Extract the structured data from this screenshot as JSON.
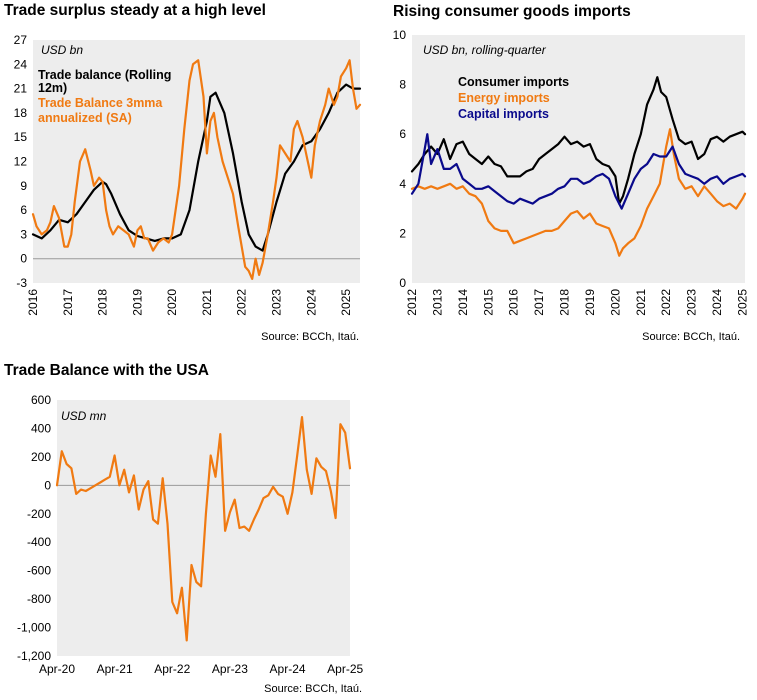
{
  "titles": {
    "trade_surplus": "Trade surplus steady at a high level",
    "consumer_imports": "Rising consumer goods imports",
    "usa": "Trade Balance with the USA"
  },
  "colors": {
    "black": "#000000",
    "orange": "#F07A12",
    "navy": "#0A0A8C",
    "plot_bg": "#EDEDED"
  },
  "chart_data": [
    {
      "type": "line",
      "title": "Trade surplus steady at a high level",
      "unit_label": "USD bn",
      "source": "Source: BCCh, Itaú.",
      "xlim": [
        2016,
        2025.4
      ],
      "x_ticks": [
        2016,
        2017,
        2018,
        2019,
        2020,
        2021,
        2022,
        2023,
        2024,
        2025
      ],
      "x_tick_labels": [
        "2016",
        "2017",
        "2018",
        "2019",
        "2020",
        "2021",
        "2022",
        "2023",
        "2024",
        "2025"
      ],
      "ylim": [
        -3,
        27
      ],
      "y_ticks": [
        -3,
        0,
        3,
        6,
        9,
        12,
        15,
        18,
        21,
        24,
        27
      ],
      "y_tick_labels": [
        "-3",
        "0",
        "3",
        "6",
        "9",
        "12",
        "15",
        "18",
        "21",
        "24",
        "27"
      ],
      "legend_placement": "top-left",
      "series": [
        {
          "name": "Trade balance (Rolling 12m)",
          "legend_label_lines": [
            "Trade balance (Rolling",
            "12m)"
          ],
          "color": "#000000",
          "x": [
            2016.0,
            2016.25,
            2016.5,
            2016.75,
            2017.0,
            2017.25,
            2017.5,
            2017.75,
            2018.0,
            2018.1,
            2018.25,
            2018.5,
            2018.75,
            2019.0,
            2019.25,
            2019.5,
            2019.75,
            2020.0,
            2020.25,
            2020.5,
            2020.75,
            2021.0,
            2021.1,
            2021.25,
            2021.5,
            2021.75,
            2022.0,
            2022.2,
            2022.4,
            2022.6,
            2022.75,
            2023.0,
            2023.25,
            2023.5,
            2023.75,
            2024.0,
            2024.25,
            2024.5,
            2024.75,
            2025.0,
            2025.2,
            2025.4
          ],
          "y": [
            3,
            2.5,
            3.5,
            4.8,
            4.5,
            5.5,
            7,
            8.5,
            9.5,
            9.2,
            8,
            5.5,
            3.5,
            2.8,
            2.5,
            2.2,
            2.5,
            2.5,
            3,
            6,
            12,
            17,
            20,
            20.5,
            18,
            13,
            7,
            3,
            1.5,
            1,
            3,
            7,
            10.5,
            12,
            14,
            14.5,
            16,
            18,
            20.5,
            21.5,
            21,
            21
          ]
        },
        {
          "name": "Trade Balance 3mma annualized (SA)",
          "legend_label_lines": [
            "Trade Balance 3mma",
            "annualized (SA)"
          ],
          "color": "#F07A12",
          "x": [
            2016.0,
            2016.1,
            2016.25,
            2016.4,
            2016.5,
            2016.6,
            2016.75,
            2016.9,
            2017.0,
            2017.1,
            2017.2,
            2017.35,
            2017.5,
            2017.65,
            2017.75,
            2017.9,
            2018.0,
            2018.1,
            2018.2,
            2018.3,
            2018.45,
            2018.6,
            2018.75,
            2018.9,
            2019.0,
            2019.1,
            2019.2,
            2019.3,
            2019.45,
            2019.6,
            2019.75,
            2019.9,
            2020.0,
            2020.1,
            2020.2,
            2020.35,
            2020.5,
            2020.6,
            2020.75,
            2020.9,
            2021.0,
            2021.1,
            2021.2,
            2021.3,
            2021.45,
            2021.6,
            2021.75,
            2021.9,
            2022.0,
            2022.1,
            2022.2,
            2022.3,
            2022.4,
            2022.5,
            2022.6,
            2022.75,
            2022.9,
            2023.0,
            2023.1,
            2023.25,
            2023.4,
            2023.5,
            2023.6,
            2023.75,
            2023.9,
            2024.0,
            2024.1,
            2024.25,
            2024.4,
            2024.5,
            2024.65,
            2024.75,
            2024.85,
            2025.0,
            2025.1,
            2025.2,
            2025.3,
            2025.4
          ],
          "y": [
            5.5,
            4,
            3,
            3.5,
            4.5,
            6.5,
            5,
            1.5,
            1.5,
            3,
            7,
            12,
            13.5,
            11,
            9,
            10,
            9.5,
            6,
            4,
            3,
            4,
            3.5,
            3,
            1.5,
            3.5,
            4,
            2.5,
            2.5,
            1,
            2,
            2.5,
            2,
            3,
            6,
            9,
            16,
            22,
            24,
            24.5,
            20,
            13,
            17,
            18,
            15,
            12,
            10,
            8,
            4,
            1.5,
            -1,
            -1.5,
            -2.5,
            0,
            -2,
            -0.5,
            3,
            7,
            10,
            14,
            13,
            12,
            16,
            17,
            15,
            12,
            10,
            14,
            17,
            19,
            21,
            19,
            20,
            22.5,
            23.5,
            24.5,
            21,
            18.5,
            19
          ]
        }
      ]
    },
    {
      "type": "line",
      "title": "Rising consumer goods imports",
      "unit_label": "USD bn, rolling-quarter",
      "source": "Source: BCCh, Itaú.",
      "xlim": [
        2012,
        2025.1
      ],
      "x_ticks": [
        2012,
        2013,
        2014,
        2015,
        2016,
        2017,
        2018,
        2019,
        2020,
        2021,
        2022,
        2023,
        2024,
        2025
      ],
      "x_tick_labels": [
        "2012",
        "2013",
        "2014",
        "2015",
        "2016",
        "2017",
        "2018",
        "2019",
        "2020",
        "2021",
        "2022",
        "2023",
        "2024",
        "2025"
      ],
      "ylim": [
        0,
        10
      ],
      "y_ticks": [
        0,
        2,
        4,
        6,
        8,
        10
      ],
      "y_tick_labels": [
        "0",
        "2",
        "4",
        "6",
        "8",
        "10"
      ],
      "legend_placement": "top-left",
      "series": [
        {
          "name": "Consumer imports",
          "color": "#000000",
          "x": [
            2012.0,
            2012.25,
            2012.5,
            2012.75,
            2013.0,
            2013.25,
            2013.5,
            2013.75,
            2014.0,
            2014.25,
            2014.5,
            2014.75,
            2015.0,
            2015.25,
            2015.5,
            2015.75,
            2016.0,
            2016.25,
            2016.5,
            2016.75,
            2017.0,
            2017.25,
            2017.5,
            2017.75,
            2018.0,
            2018.25,
            2018.5,
            2018.75,
            2019.0,
            2019.25,
            2019.5,
            2019.75,
            2020.0,
            2020.15,
            2020.3,
            2020.5,
            2020.75,
            2021.0,
            2021.25,
            2021.5,
            2021.65,
            2021.8,
            2022.0,
            2022.25,
            2022.5,
            2022.75,
            2023.0,
            2023.25,
            2023.5,
            2023.75,
            2024.0,
            2024.25,
            2024.5,
            2024.75,
            2025.0,
            2025.1
          ],
          "y": [
            4.5,
            4.8,
            5.2,
            5.5,
            5.2,
            5.8,
            5,
            5.6,
            5.7,
            5.2,
            5,
            4.8,
            5.1,
            4.8,
            4.7,
            4.3,
            4.3,
            4.3,
            4.5,
            4.6,
            5,
            5.2,
            5.4,
            5.6,
            5.9,
            5.6,
            5.7,
            5.5,
            5.6,
            5,
            4.8,
            4.7,
            4.3,
            3.2,
            3.5,
            4.2,
            5.2,
            6,
            7.2,
            7.8,
            8.3,
            7.7,
            7.5,
            6.6,
            5.8,
            5.6,
            5.7,
            5,
            5.2,
            5.8,
            5.9,
            5.7,
            5.9,
            6,
            6.1,
            6
          ]
        },
        {
          "name": "Energy imports",
          "color": "#F07A12",
          "x": [
            2012.0,
            2012.25,
            2012.5,
            2012.75,
            2013.0,
            2013.25,
            2013.5,
            2013.75,
            2014.0,
            2014.25,
            2014.5,
            2014.75,
            2015.0,
            2015.25,
            2015.5,
            2015.75,
            2016.0,
            2016.25,
            2016.5,
            2016.75,
            2017.0,
            2017.25,
            2017.5,
            2017.75,
            2018.0,
            2018.25,
            2018.5,
            2018.75,
            2019.0,
            2019.25,
            2019.5,
            2019.75,
            2020.0,
            2020.15,
            2020.3,
            2020.5,
            2020.75,
            2021.0,
            2021.25,
            2021.5,
            2021.75,
            2022.0,
            2022.15,
            2022.3,
            2022.5,
            2022.75,
            2023.0,
            2023.25,
            2023.5,
            2023.75,
            2024.0,
            2024.25,
            2024.5,
            2024.75,
            2025.0,
            2025.1
          ],
          "y": [
            3.8,
            3.9,
            3.8,
            3.9,
            3.8,
            3.9,
            4,
            3.8,
            3.9,
            3.6,
            3.5,
            3.2,
            2.5,
            2.2,
            2.1,
            2.1,
            1.6,
            1.7,
            1.8,
            1.9,
            2,
            2.1,
            2.1,
            2.2,
            2.5,
            2.8,
            2.9,
            2.6,
            2.8,
            2.4,
            2.3,
            2.2,
            1.6,
            1.1,
            1.4,
            1.6,
            1.8,
            2.3,
            3,
            3.5,
            4,
            5.5,
            6.2,
            5.2,
            4.2,
            3.8,
            3.9,
            3.5,
            3.9,
            3.6,
            3.3,
            3.1,
            3.2,
            3,
            3.4,
            3.6
          ]
        },
        {
          "name": "Capital imports",
          "color": "#0A0A8C",
          "x": [
            2012.0,
            2012.25,
            2012.5,
            2012.6,
            2012.75,
            2013.0,
            2013.25,
            2013.5,
            2013.75,
            2014.0,
            2014.25,
            2014.5,
            2014.75,
            2015.0,
            2015.25,
            2015.5,
            2015.75,
            2016.0,
            2016.25,
            2016.5,
            2016.75,
            2017.0,
            2017.25,
            2017.5,
            2017.75,
            2018.0,
            2018.25,
            2018.5,
            2018.75,
            2019.0,
            2019.25,
            2019.5,
            2019.75,
            2020.0,
            2020.25,
            2020.5,
            2020.75,
            2021.0,
            2021.25,
            2021.5,
            2021.75,
            2022.0,
            2022.25,
            2022.5,
            2022.75,
            2023.0,
            2023.25,
            2023.5,
            2023.75,
            2024.0,
            2024.25,
            2024.5,
            2024.75,
            2025.0,
            2025.1
          ],
          "y": [
            3.6,
            4,
            5.4,
            6,
            4.8,
            5.4,
            4.6,
            4.6,
            4.8,
            4.2,
            4,
            3.8,
            3.8,
            3.9,
            3.7,
            3.5,
            3.3,
            3.2,
            3.4,
            3.3,
            3.2,
            3.4,
            3.5,
            3.6,
            3.8,
            3.9,
            4.2,
            4.2,
            4,
            4.1,
            4.3,
            4.4,
            4.2,
            3.5,
            3,
            3.6,
            4.2,
            4.6,
            4.8,
            5.2,
            5.1,
            5.1,
            5.5,
            4.8,
            4.4,
            4.3,
            4.2,
            4,
            4.2,
            4.3,
            4,
            4.2,
            4.3,
            4.4,
            4.3
          ]
        }
      ]
    },
    {
      "type": "line",
      "title": "Trade Balance with the USA",
      "unit_label": "USD mn",
      "source": "Source: BCCh, Itaú.",
      "x_axis": "months since Apr-20",
      "xlim": [
        0,
        61
      ],
      "x_ticks": [
        0,
        12,
        24,
        36,
        48,
        60
      ],
      "x_tick_labels": [
        "Apr-20",
        "Apr-21",
        "Apr-22",
        "Apr-23",
        "Apr-24",
        "Apr-25"
      ],
      "ylim": [
        -1200,
        600
      ],
      "y_ticks": [
        -1200,
        -1000,
        -800,
        -600,
        -400,
        -200,
        0,
        200,
        400,
        600
      ],
      "y_tick_labels": [
        "-1,200",
        "-1,000",
        "-800",
        "-600",
        "-400",
        "-200",
        "0",
        "200",
        "400",
        "600"
      ],
      "series": [
        {
          "name": "",
          "color": "#F07A12",
          "x": [
            0,
            1,
            2,
            3,
            4,
            5,
            6,
            7,
            8,
            9,
            10,
            11,
            12,
            13,
            14,
            15,
            16,
            17,
            18,
            19,
            20,
            21,
            22,
            23,
            24,
            25,
            26,
            27,
            28,
            29,
            30,
            31,
            32,
            33,
            34,
            35,
            36,
            37,
            38,
            39,
            40,
            41,
            42,
            43,
            44,
            45,
            46,
            47,
            48,
            49,
            50,
            51,
            52,
            53,
            54,
            55,
            56,
            57,
            58,
            59,
            60,
            61
          ],
          "y": [
            0,
            240,
            150,
            120,
            -60,
            -30,
            -40,
            -20,
            0,
            20,
            40,
            60,
            210,
            0,
            110,
            -50,
            70,
            -170,
            -30,
            30,
            -240,
            -270,
            50,
            -270,
            -820,
            -900,
            -720,
            -1090,
            -560,
            -680,
            -710,
            -200,
            210,
            60,
            360,
            -320,
            -190,
            -100,
            -300,
            -290,
            -320,
            -240,
            -170,
            -90,
            -70,
            -10,
            -60,
            -80,
            -200,
            -50,
            210,
            480,
            110,
            -60,
            190,
            130,
            100,
            -40,
            -230,
            430,
            370,
            120
          ]
        }
      ]
    }
  ]
}
